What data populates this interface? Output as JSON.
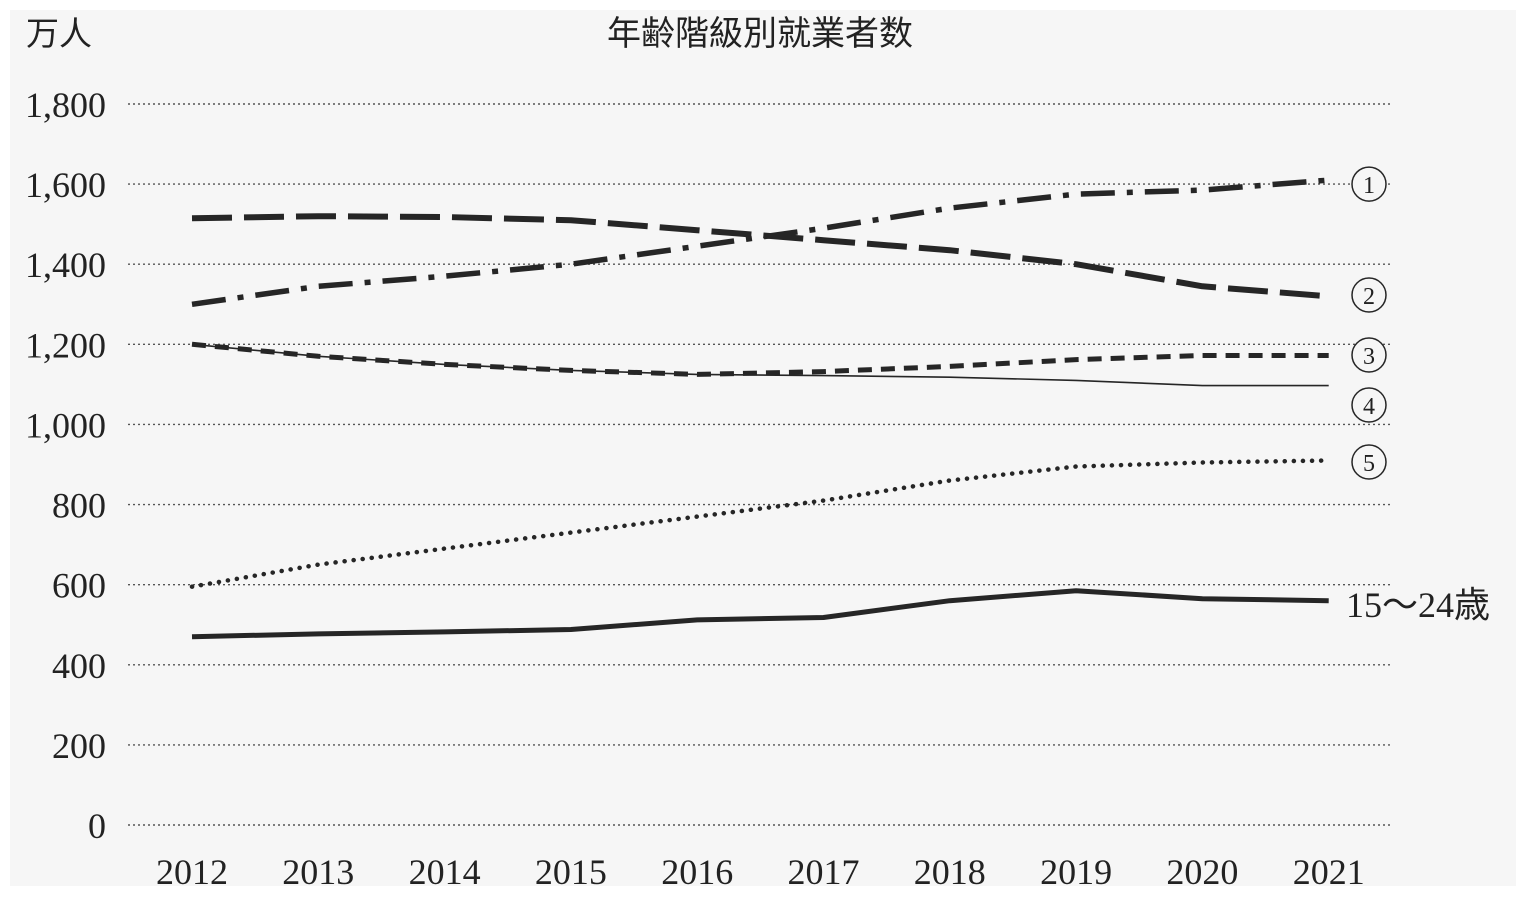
{
  "chart_data": {
    "type": "line",
    "title": "年齢階級別就業者数",
    "unit_label": "万人",
    "categories": [
      "2012",
      "2013",
      "2014",
      "2015",
      "2016",
      "2017",
      "2018",
      "2019",
      "2020",
      "2021"
    ],
    "ylim": [
      0,
      1800
    ],
    "y_ticks": [
      0,
      200,
      400,
      600,
      800,
      1000,
      1200,
      1400,
      1600,
      1800
    ],
    "y_tick_labels": [
      "0",
      "200",
      "400",
      "600",
      "800",
      "1,000",
      "1,200",
      "1,400",
      "1,600",
      "1,800"
    ],
    "grid": "horizontal dotted",
    "legend": "end-of-line labels",
    "series": [
      {
        "name": "①",
        "style": "dash-dot",
        "values": [
          1300,
          1345,
          1370,
          1400,
          1445,
          1490,
          1540,
          1575,
          1585,
          1610
        ]
      },
      {
        "name": "②",
        "style": "long-dash",
        "values": [
          1515,
          1520,
          1518,
          1510,
          1485,
          1460,
          1435,
          1400,
          1345,
          1320
        ]
      },
      {
        "name": "③",
        "style": "short-dash",
        "values": [
          1200,
          1170,
          1150,
          1135,
          1125,
          1132,
          1145,
          1162,
          1172,
          1172
        ]
      },
      {
        "name": "④",
        "style": "thin-solid",
        "values": [
          1200,
          1170,
          1150,
          1135,
          1125,
          1122,
          1118,
          1110,
          1097,
          1097
        ]
      },
      {
        "name": "⑤",
        "style": "dotted",
        "values": [
          595,
          650,
          690,
          730,
          770,
          810,
          860,
          895,
          905,
          910
        ]
      },
      {
        "name": "15～24歳",
        "style": "thick-solid",
        "values": [
          470,
          477,
          482,
          488,
          512,
          518,
          560,
          585,
          565,
          560
        ]
      }
    ]
  },
  "colors": {
    "background": "#f6f6f6",
    "line": "#262626",
    "grid": "#555555"
  }
}
